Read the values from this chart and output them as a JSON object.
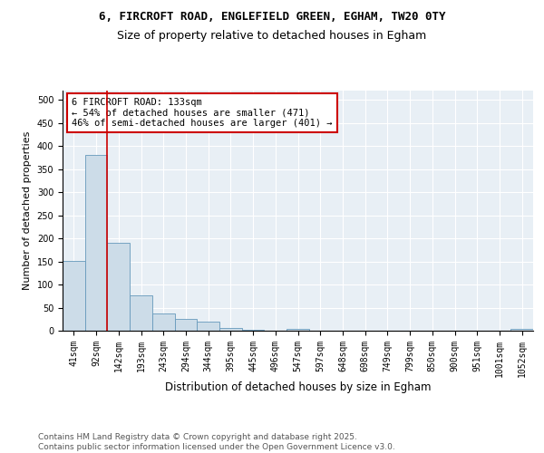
{
  "title1": "6, FIRCROFT ROAD, ENGLEFIELD GREEN, EGHAM, TW20 0TY",
  "title2": "Size of property relative to detached houses in Egham",
  "xlabel": "Distribution of detached houses by size in Egham",
  "ylabel": "Number of detached properties",
  "bar_labels": [
    "41sqm",
    "92sqm",
    "142sqm",
    "193sqm",
    "243sqm",
    "294sqm",
    "344sqm",
    "395sqm",
    "445sqm",
    "496sqm",
    "547sqm",
    "597sqm",
    "648sqm",
    "698sqm",
    "749sqm",
    "799sqm",
    "850sqm",
    "900sqm",
    "951sqm",
    "1001sqm",
    "1052sqm"
  ],
  "bar_values": [
    152,
    380,
    191,
    77,
    38,
    26,
    20,
    6,
    2,
    0,
    3,
    0,
    0,
    0,
    0,
    0,
    0,
    0,
    0,
    0,
    3
  ],
  "bar_color": "#ccdce8",
  "bar_edge_color": "#6699bb",
  "red_line_color": "#cc0000",
  "annotation_text": "6 FIRCROFT ROAD: 133sqm\n← 54% of detached houses are smaller (471)\n46% of semi-detached houses are larger (401) →",
  "annotation_box_color": "white",
  "annotation_box_edge": "#cc0000",
  "ylim": [
    0,
    520
  ],
  "yticks": [
    0,
    50,
    100,
    150,
    200,
    250,
    300,
    350,
    400,
    450,
    500
  ],
  "ytick_labels": [
    "0",
    "50",
    "100",
    "150",
    "200",
    "250",
    "300",
    "350",
    "400",
    "450",
    "500"
  ],
  "bg_color": "#e8eff5",
  "footer_text": "Contains HM Land Registry data © Crown copyright and database right 2025.\nContains public sector information licensed under the Open Government Licence v3.0.",
  "title1_fontsize": 9,
  "title2_fontsize": 9,
  "xlabel_fontsize": 8.5,
  "ylabel_fontsize": 8,
  "tick_fontsize": 7,
  "annotation_fontsize": 7.5,
  "footer_fontsize": 6.5
}
